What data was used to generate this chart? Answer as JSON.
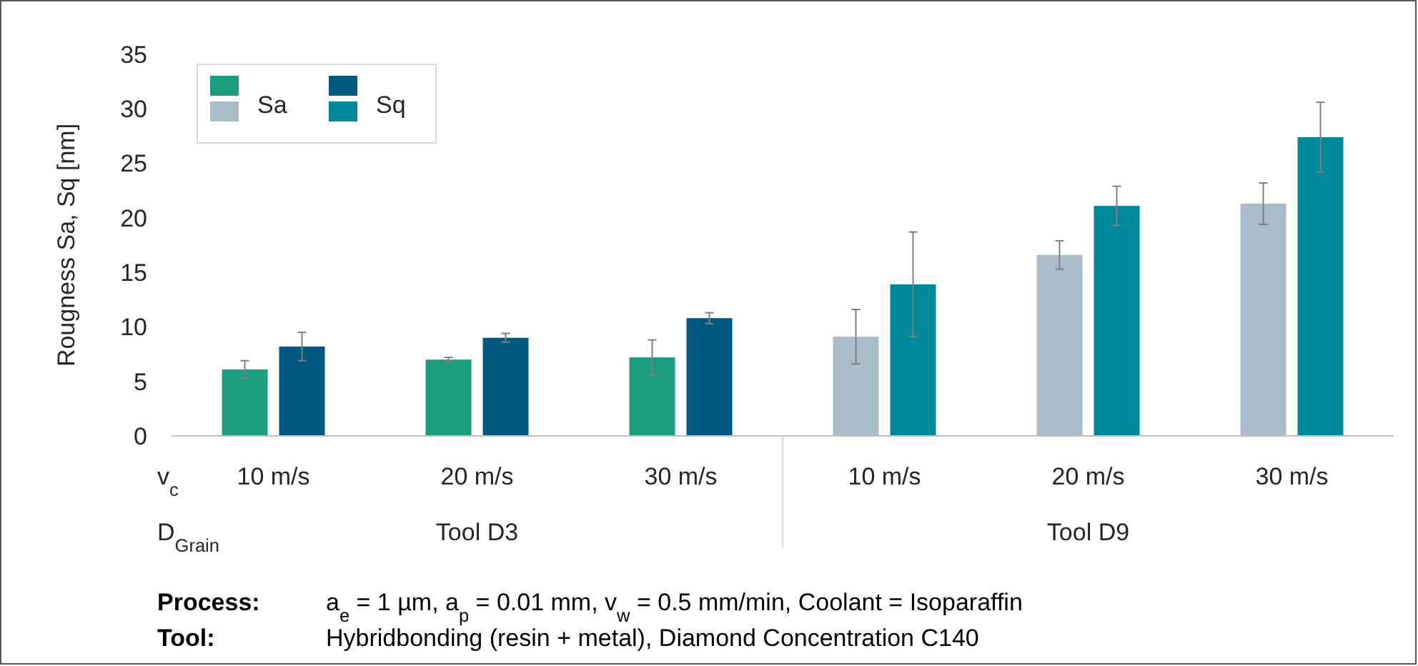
{
  "chart_data": {
    "type": "bar",
    "ylabel": "Rougness Sa, Sq [nm]",
    "categories": [
      "10 m/s",
      "20 m/s",
      "30 m/s",
      "10 m/s",
      "20 m/s",
      "30 m/s"
    ],
    "series": [
      {
        "name": "Sa",
        "colors": [
          "#1a9e7e",
          "#1a9e7e",
          "#1a9e7e",
          "#a9bcc8",
          "#a9bcc8",
          "#a9bcc8"
        ],
        "values": [
          6.1,
          7.0,
          7.2,
          9.1,
          16.6,
          21.3
        ],
        "errors": [
          0.8,
          0.2,
          1.6,
          2.5,
          1.3,
          1.9
        ]
      },
      {
        "name": "Sq",
        "colors": [
          "#005a7f",
          "#005a7f",
          "#005a7f",
          "#00899a",
          "#00899a",
          "#00899a"
        ],
        "values": [
          8.2,
          9.0,
          10.8,
          13.9,
          21.1,
          27.4
        ],
        "errors": [
          1.3,
          0.4,
          0.5,
          4.8,
          1.8,
          3.2
        ]
      }
    ],
    "ylim": [
      0,
      35
    ],
    "yticks": [
      0,
      5,
      10,
      15,
      20,
      25,
      30,
      35
    ],
    "grid": false,
    "legend": "top left",
    "annotations": [
      "v$_{c}$",
      "D$_{Grain}$",
      "Tool D3",
      "Tool D9",
      "Process:",
      "a$_{e}$ = 1 µm, a$_{p}$ = 0.01 mm, v$_{w}$ = 0.5 mm/min, Coolant = Isoparaffin",
      "Tool:",
      "Hybridbonding (resin + metal), Diamond Concentration C140"
    ]
  }
}
